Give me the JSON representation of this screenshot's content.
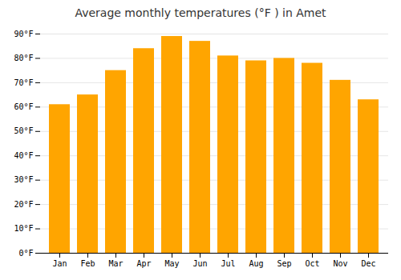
{
  "chart_data": {
    "type": "bar",
    "title": "Average monthly temperatures (°F ) in Amet",
    "categories": [
      "Jan",
      "Feb",
      "Mar",
      "Apr",
      "May",
      "Jun",
      "Jul",
      "Aug",
      "Sep",
      "Oct",
      "Nov",
      "Dec"
    ],
    "values": [
      61,
      65,
      75,
      84,
      89,
      87,
      81,
      79,
      80,
      78,
      71,
      63
    ],
    "color": "#FFA500",
    "ylim": [
      0,
      90
    ],
    "yticks": [
      {
        "value": 0,
        "label": "0°F"
      },
      {
        "value": 10,
        "label": "10°F"
      },
      {
        "value": 20,
        "label": "20°F"
      },
      {
        "value": 30,
        "label": "30°F"
      },
      {
        "value": 40,
        "label": "40°F"
      },
      {
        "value": 50,
        "label": "50°F"
      },
      {
        "value": 60,
        "label": "60°F"
      },
      {
        "value": 70,
        "label": "70°F"
      },
      {
        "value": 80,
        "label": "80°F"
      },
      {
        "value": 90,
        "label": "90°F"
      }
    ],
    "grid": true
  }
}
